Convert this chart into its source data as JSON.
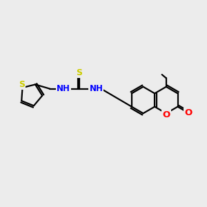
{
  "bg_color": "#ececec",
  "bond_color": "#000000",
  "S_color": "#cccc00",
  "N_color": "#0000ff",
  "O_color": "#ff0000",
  "line_width": 1.6,
  "font_size": 8.5,
  "figsize": [
    3.0,
    3.0
  ],
  "dpi": 100,
  "xlim": [
    0,
    12
  ],
  "ylim": [
    0,
    10
  ]
}
